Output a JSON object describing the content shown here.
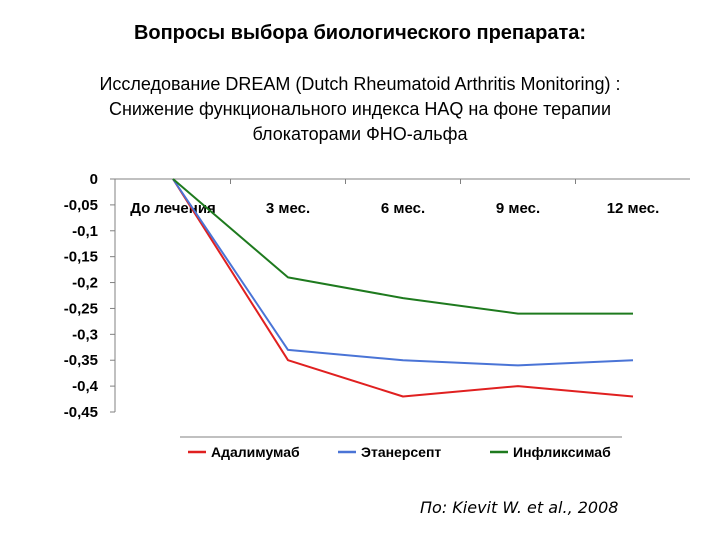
{
  "title": "Вопросы выбора биологического препарата:",
  "subtitle_lines": [
    "Исследование DREAM (Dutch Rheumatoid Arthritis Monitoring) :",
    "Снижение функционального индекса HAQ на фоне терапии",
    "блокаторами ФНО-альфа"
  ],
  "source": "По: Kievit W. et al., 2008",
  "chart_data": {
    "type": "line",
    "categories": [
      "До лечения",
      "3 мес.",
      "6 мес.",
      "9 мес.",
      "12 мес."
    ],
    "series": [
      {
        "name": "Адалимумаб",
        "color": "#e02020",
        "values": [
          0,
          -0.35,
          -0.42,
          -0.4,
          -0.42
        ]
      },
      {
        "name": "Этанерсепт",
        "color": "#4a74d6",
        "values": [
          0,
          -0.33,
          -0.35,
          -0.36,
          -0.35
        ]
      },
      {
        "name": "Инфликсимаб",
        "color": "#1e7a1e",
        "values": [
          0,
          -0.19,
          -0.23,
          -0.26,
          -0.26
        ]
      }
    ],
    "ylim": [
      -0.45,
      0
    ],
    "yticks": [
      0,
      -0.05,
      -0.1,
      -0.15,
      -0.2,
      -0.25,
      -0.3,
      -0.35,
      -0.4,
      -0.45
    ],
    "ytick_labels": [
      "0",
      "-0,05",
      "-0,1",
      "-0,15",
      "-0,2",
      "-0,25",
      "-0,3",
      "-0,35",
      "-0,4",
      "-0,45"
    ],
    "xaxis_position": "top",
    "grid": false,
    "legend_position": "bottom"
  }
}
